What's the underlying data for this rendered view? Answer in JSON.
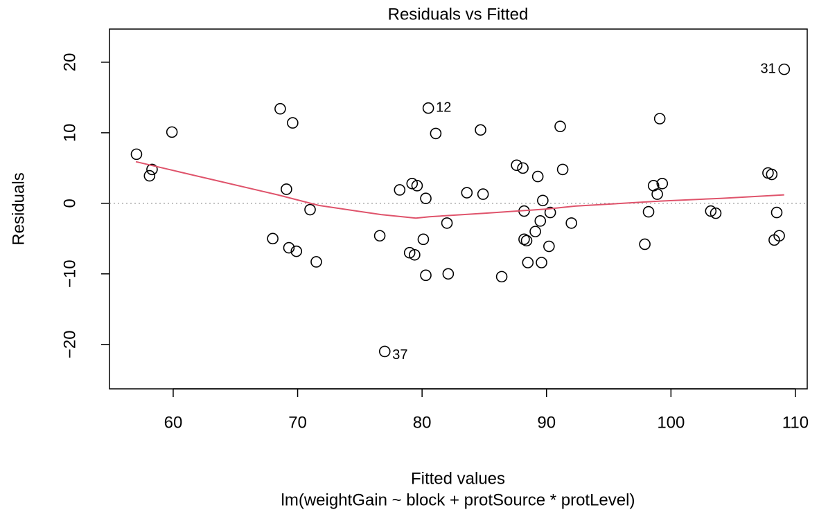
{
  "chart_data": {
    "type": "scatter",
    "title": "Residuals vs Fitted",
    "xlabel": "Fitted values",
    "subtitle": "lm(weightGain ~ block + protSource * protLevel)",
    "ylabel": "Residuals",
    "color": "#000000",
    "x": [
      57.05,
      58.1,
      58.3,
      59.9,
      68.6,
      69.6,
      69.1,
      71.0,
      68.0,
      69.3,
      69.9,
      71.5,
      76.6,
      77.0,
      78.2,
      79.2,
      79.6,
      79.0,
      79.4,
      80.3,
      80.1,
      80.3,
      80.5,
      81.1,
      82.0,
      82.1,
      83.6,
      84.9,
      84.7,
      86.4,
      87.6,
      88.1,
      88.2,
      88.2,
      88.4,
      88.5,
      89.1,
      89.3,
      89.5,
      89.6,
      89.7,
      90.3,
      90.2,
      91.1,
      91.3,
      92.0,
      97.9,
      98.2,
      98.6,
      98.9,
      99.1,
      99.3,
      103.2,
      103.6,
      107.8,
      108.1,
      108.3,
      108.5,
      108.7,
      109.1
    ],
    "y": [
      6.96,
      3.9,
      4.8,
      10.1,
      13.4,
      11.4,
      2.0,
      -0.9,
      -5.0,
      -6.3,
      -6.8,
      -8.3,
      -4.6,
      -21.0,
      1.9,
      2.8,
      2.5,
      -7.0,
      -7.3,
      0.7,
      -5.1,
      -10.2,
      13.5,
      9.9,
      -2.8,
      -10.0,
      1.5,
      1.3,
      10.4,
      -10.4,
      5.4,
      5.0,
      -1.1,
      -5.1,
      -5.3,
      -8.4,
      -4.0,
      3.8,
      -2.5,
      -8.4,
      0.4,
      -1.3,
      -6.1,
      10.9,
      4.8,
      -2.8,
      -5.8,
      -1.2,
      2.5,
      1.3,
      12.0,
      2.8,
      -1.1,
      -1.4,
      4.3,
      4.1,
      -5.2,
      -1.3,
      -4.6,
      19.0
    ],
    "smooth": {
      "color": "#DF536B",
      "x": [
        57.0,
        62.8,
        68.4,
        71.7,
        76.7,
        79.5,
        80.6,
        85.1,
        90.1,
        92.3,
        99.0,
        104.0,
        109.1
      ],
      "y": [
        5.9,
        3.5,
        1.2,
        -0.3,
        -1.6,
        -2.1,
        -1.9,
        -1.4,
        -0.8,
        -0.4,
        0.3,
        0.7,
        1.2
      ]
    },
    "reference_line": 0,
    "annotations": [
      {
        "text": "31",
        "x": 109.1,
        "y": 19.0
      },
      {
        "text": "12",
        "x": 80.5,
        "y": 13.5
      },
      {
        "text": "37",
        "x": 77.0,
        "y": -21.0
      }
    ],
    "xlim": [
      54.88,
      110.95
    ],
    "ylim": [
      -26.3,
      24.7
    ],
    "xticks": [
      60,
      70,
      80,
      90,
      100,
      110
    ],
    "yticks": [
      {
        "value": -20,
        "label": "−20"
      },
      {
        "value": -10,
        "label": "−10"
      },
      0,
      10,
      20
    ]
  }
}
